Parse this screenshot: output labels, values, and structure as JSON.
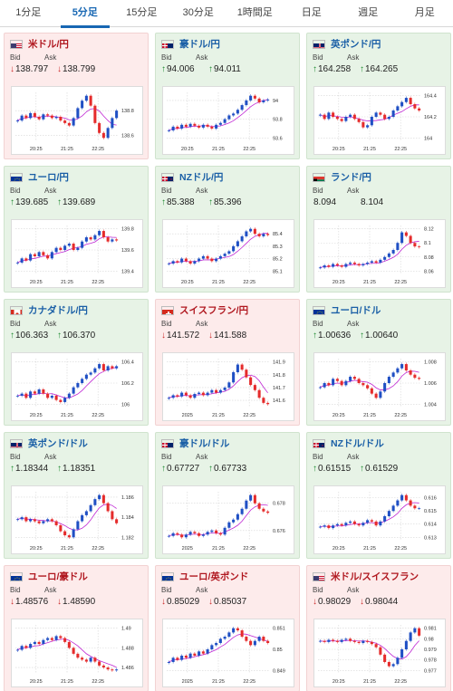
{
  "tabs": [
    {
      "label": "1分足",
      "active": false
    },
    {
      "label": "5分足",
      "active": true
    },
    {
      "label": "15分足",
      "active": false
    },
    {
      "label": "30分足",
      "active": false
    },
    {
      "label": "1時間足",
      "active": false
    },
    {
      "label": "日足",
      "active": false
    },
    {
      "label": "週足",
      "active": false
    },
    {
      "label": "月足",
      "active": false
    }
  ],
  "labels": {
    "bid": "Bid",
    "ask": "Ask"
  },
  "colors": {
    "up_card": "#e7f3e6",
    "down_card": "#fdebeb",
    "up_candle": "#1f4fc4",
    "down_candle": "#e52b2b",
    "ma_line": "#c026d3",
    "accent": "#1767b3"
  },
  "cards": [
    {
      "pair": "米ドル/円",
      "flag": "us-flag-icon",
      "trend": "down",
      "bid": "138.797",
      "ask": "138.799",
      "bid_dir": "down",
      "ask_dir": "down",
      "chart_data": {
        "type": "candlestick",
        "x_ticks": [
          "20:25",
          "21:25",
          "22:25"
        ],
        "y_ticks": [
          "138.8",
          "138.6"
        ],
        "closes": [
          138.72,
          138.76,
          138.74,
          138.78,
          138.75,
          138.73,
          138.77,
          138.76,
          138.74,
          138.75,
          138.72,
          138.7,
          138.68,
          138.74,
          138.82,
          138.88,
          138.92,
          138.84,
          138.7,
          138.62,
          138.58,
          138.66,
          138.74,
          138.8
        ]
      }
    },
    {
      "pair": "豪ドル/円",
      "flag": "au-flag-icon",
      "trend": "up",
      "bid": "94.006",
      "ask": "94.011",
      "bid_dir": "up",
      "ask_dir": "up",
      "chart_data": {
        "type": "candlestick",
        "x_ticks": [
          "20:25",
          "21:25",
          "22:25"
        ],
        "y_ticks": [
          "94",
          "93.8",
          "93.6"
        ],
        "closes": [
          93.68,
          93.72,
          93.7,
          93.74,
          93.72,
          93.75,
          93.73,
          93.71,
          93.74,
          93.72,
          93.7,
          93.74,
          93.76,
          93.8,
          93.84,
          93.86,
          93.9,
          93.95,
          94.0,
          94.05,
          94.02,
          93.98,
          94.0,
          94.01
        ]
      }
    },
    {
      "pair": "英ポンド/円",
      "flag": "uk-flag-icon",
      "trend": "up",
      "bid": "164.258",
      "ask": "164.265",
      "bid_dir": "up",
      "ask_dir": "up",
      "chart_data": {
        "type": "candlestick",
        "x_ticks": [
          "20:25",
          "21:25",
          "22:25"
        ],
        "y_ticks": [
          "164.4",
          "164.2",
          "164"
        ],
        "closes": [
          164.22,
          164.18,
          164.24,
          164.2,
          164.18,
          164.16,
          164.2,
          164.22,
          164.18,
          164.15,
          164.1,
          164.12,
          164.2,
          164.24,
          164.22,
          164.18,
          164.2,
          164.26,
          164.3,
          164.34,
          164.38,
          164.32,
          164.28,
          164.26
        ]
      }
    },
    {
      "pair": "ユーロ/円",
      "flag": "eu-flag-icon",
      "trend": "up",
      "bid": "139.685",
      "ask": "139.689",
      "bid_dir": "up",
      "ask_dir": "up",
      "chart_data": {
        "type": "candlestick",
        "x_ticks": [
          "20:25",
          "21:25",
          "22:25"
        ],
        "y_ticks": [
          "139.8",
          "139.6",
          "139.4"
        ],
        "closes": [
          139.48,
          139.52,
          139.5,
          139.56,
          139.54,
          139.58,
          139.55,
          139.52,
          139.58,
          139.62,
          139.6,
          139.64,
          139.66,
          139.6,
          139.62,
          139.68,
          139.72,
          139.7,
          139.74,
          139.78,
          139.72,
          139.68,
          139.7,
          139.69
        ]
      }
    },
    {
      "pair": "NZドル/円",
      "flag": "nz-flag-icon",
      "trend": "up",
      "bid": "85.388",
      "ask": "85.396",
      "bid_dir": "up",
      "ask_dir": "up",
      "chart_data": {
        "type": "candlestick",
        "x_ticks": [
          "20:25",
          "21:25",
          "22:25"
        ],
        "y_ticks": [
          "85.4",
          "85.3",
          "85.2",
          "85.1"
        ],
        "closes": [
          85.16,
          85.18,
          85.17,
          85.2,
          85.18,
          85.16,
          85.18,
          85.2,
          85.22,
          85.2,
          85.18,
          85.2,
          85.22,
          85.24,
          85.26,
          85.3,
          85.34,
          85.38,
          85.42,
          85.44,
          85.4,
          85.38,
          85.4,
          85.39
        ]
      }
    },
    {
      "pair": "ランド/円",
      "flag": "za-flag-icon",
      "trend": "up",
      "bid": "8.094",
      "ask": "8.104",
      "bid_dir": "none",
      "ask_dir": "none",
      "chart_data": {
        "type": "candlestick",
        "x_ticks": [
          "20:25",
          "21:25",
          "22:25"
        ],
        "y_ticks": [
          "8.12",
          "8.1",
          "8.08",
          "8.06"
        ],
        "closes": [
          8.065,
          8.068,
          8.066,
          8.07,
          8.068,
          8.066,
          8.07,
          8.072,
          8.07,
          8.068,
          8.07,
          8.072,
          8.074,
          8.072,
          8.076,
          8.08,
          8.085,
          8.09,
          8.1,
          8.115,
          8.11,
          8.1,
          8.095,
          8.094
        ]
      }
    },
    {
      "pair": "カナダドル/円",
      "flag": "ca-flag-icon",
      "trend": "up",
      "bid": "106.363",
      "ask": "106.370",
      "bid_dir": "up",
      "ask_dir": "up",
      "chart_data": {
        "type": "candlestick",
        "x_ticks": [
          "20:25",
          "21:25",
          "22:25"
        ],
        "y_ticks": [
          "106.4",
          "106.2",
          "106"
        ],
        "closes": [
          106.08,
          106.1,
          106.06,
          106.12,
          106.1,
          106.14,
          106.1,
          106.06,
          106.08,
          106.04,
          106.02,
          106.06,
          106.1,
          106.16,
          106.2,
          106.24,
          106.28,
          106.3,
          106.34,
          106.38,
          106.32,
          106.36,
          106.34,
          106.36
        ]
      }
    },
    {
      "pair": "スイスフラン/円",
      "flag": "ch-flag-icon",
      "trend": "down",
      "bid": "141.572",
      "ask": "141.588",
      "bid_dir": "down",
      "ask_dir": "down",
      "chart_data": {
        "type": "candlestick",
        "x_ticks": [
          "2025",
          "21:25",
          "22:25"
        ],
        "y_ticks": [
          "141.9",
          "141.8",
          "141.7",
          "141.6"
        ],
        "closes": [
          141.62,
          141.64,
          141.63,
          141.66,
          141.64,
          141.62,
          141.65,
          141.66,
          141.64,
          141.66,
          141.68,
          141.66,
          141.68,
          141.7,
          141.74,
          141.82,
          141.88,
          141.84,
          141.78,
          141.72,
          141.68,
          141.62,
          141.58,
          141.57
        ]
      }
    },
    {
      "pair": "ユーロ/ドル",
      "flag": "eu-flag-icon",
      "trend": "up",
      "bid": "1.00636",
      "ask": "1.00640",
      "bid_dir": "up",
      "ask_dir": "up",
      "chart_data": {
        "type": "candlestick",
        "x_ticks": [
          "20:25",
          "21:25",
          "22:25"
        ],
        "y_ticks": [
          "1.008",
          "1.006",
          "1.004"
        ],
        "closes": [
          1.0056,
          1.006,
          1.0058,
          1.0064,
          1.0062,
          1.0058,
          1.0062,
          1.0066,
          1.0064,
          1.006,
          1.0058,
          1.0055,
          1.005,
          1.0046,
          1.0052,
          1.006,
          1.0066,
          1.007,
          1.0074,
          1.0078,
          1.0072,
          1.0068,
          1.0065,
          1.0064
        ]
      }
    },
    {
      "pair": "英ポンド/ドル",
      "flag": "uk-flag-icon",
      "trend": "up",
      "bid": "1.18344",
      "ask": "1.18351",
      "bid_dir": "up",
      "ask_dir": "up",
      "chart_data": {
        "type": "candlestick",
        "x_ticks": [
          "20:25",
          "21:25",
          "22:25"
        ],
        "y_ticks": [
          "1.186",
          "1.184",
          "1.182"
        ],
        "closes": [
          1.1838,
          1.184,
          1.1836,
          1.1838,
          1.1836,
          1.1834,
          1.1836,
          1.1838,
          1.1836,
          1.1832,
          1.1826,
          1.1822,
          1.182,
          1.1828,
          1.1836,
          1.1842,
          1.1846,
          1.1852,
          1.1858,
          1.1862,
          1.1854,
          1.1846,
          1.1838,
          1.1834
        ]
      }
    },
    {
      "pair": "豪ドル/ドル",
      "flag": "au-flag-icon",
      "trend": "up",
      "bid": "0.67727",
      "ask": "0.67733",
      "bid_dir": "up",
      "ask_dir": "up",
      "chart_data": {
        "type": "candlestick",
        "x_ticks": [
          "2025",
          "21:25",
          "22:25"
        ],
        "y_ticks": [
          "0.678",
          "0.676"
        ],
        "closes": [
          0.6756,
          0.6758,
          0.6757,
          0.6755,
          0.6757,
          0.6759,
          0.6758,
          0.6756,
          0.6757,
          0.6759,
          0.676,
          0.6758,
          0.6757,
          0.6762,
          0.6766,
          0.6768,
          0.6772,
          0.6776,
          0.6782,
          0.6786,
          0.678,
          0.6776,
          0.6774,
          0.6773
        ]
      }
    },
    {
      "pair": "NZドル/ドル",
      "flag": "nz-flag-icon",
      "trend": "up",
      "bid": "0.61515",
      "ask": "0.61529",
      "bid_dir": "up",
      "ask_dir": "up",
      "chart_data": {
        "type": "candlestick",
        "x_ticks": [
          "20:25",
          "21:25",
          "22:25"
        ],
        "y_ticks": [
          "0.616",
          "0.615",
          "0.614",
          "0.613"
        ],
        "closes": [
          0.6138,
          0.6139,
          0.6137,
          0.6139,
          0.614,
          0.6139,
          0.6141,
          0.6142,
          0.614,
          0.6139,
          0.6141,
          0.6143,
          0.6142,
          0.6139,
          0.6142,
          0.6146,
          0.615,
          0.6154,
          0.6158,
          0.6162,
          0.6158,
          0.6154,
          0.6152,
          0.6152
        ]
      }
    },
    {
      "pair": "ユーロ/豪ドル",
      "flag": "eu-flag-icon",
      "trend": "down",
      "bid": "1.48576",
      "ask": "1.48590",
      "bid_dir": "down",
      "ask_dir": "down",
      "chart_data": {
        "type": "candlestick",
        "x_ticks": [
          "20:25",
          "21:25",
          "22:25"
        ],
        "y_ticks": [
          "1.49",
          "1.488",
          "1.486"
        ],
        "closes": [
          1.4878,
          1.4882,
          1.488,
          1.4884,
          1.4886,
          1.4884,
          1.4888,
          1.489,
          1.4888,
          1.4892,
          1.489,
          1.4886,
          1.488,
          1.4874,
          1.487,
          1.4868,
          1.4866,
          1.487,
          1.4866,
          1.4862,
          1.486,
          1.4858,
          1.4857,
          1.4858
        ]
      }
    },
    {
      "pair": "ユーロ/英ポンド",
      "flag": "eu-flag-icon",
      "trend": "down",
      "bid": "0.85029",
      "ask": "0.85037",
      "bid_dir": "down",
      "ask_dir": "down",
      "chart_data": {
        "type": "candlestick",
        "x_ticks": [
          "2025",
          "21:25",
          "22:25"
        ],
        "y_ticks": [
          "0.851",
          "0.85",
          "0.849"
        ],
        "closes": [
          0.8494,
          0.8496,
          0.8495,
          0.8497,
          0.8496,
          0.8498,
          0.8497,
          0.8499,
          0.8498,
          0.85,
          0.8502,
          0.8503,
          0.8505,
          0.8506,
          0.8508,
          0.851,
          0.8509,
          0.8506,
          0.8504,
          0.8502,
          0.8504,
          0.8506,
          0.8504,
          0.8503
        ]
      }
    },
    {
      "pair": "米ドル/スイスフラン",
      "flag": "us-flag-icon",
      "trend": "down",
      "bid": "0.98029",
      "ask": "0.98044",
      "bid_dir": "down",
      "ask_dir": "down",
      "chart_data": {
        "type": "candlestick",
        "x_ticks": [
          "20:25",
          "21:25",
          "22:25"
        ],
        "y_ticks": [
          "0.981",
          "0.98",
          "0.979",
          "0.978",
          "0.977"
        ],
        "closes": [
          0.9798,
          0.9797,
          0.9799,
          0.9798,
          0.9797,
          0.9799,
          0.98,
          0.9798,
          0.9797,
          0.9796,
          0.9798,
          0.9797,
          0.9795,
          0.9792,
          0.9785,
          0.9778,
          0.9774,
          0.9776,
          0.9782,
          0.979,
          0.9798,
          0.9806,
          0.981,
          0.9803
        ]
      }
    }
  ]
}
